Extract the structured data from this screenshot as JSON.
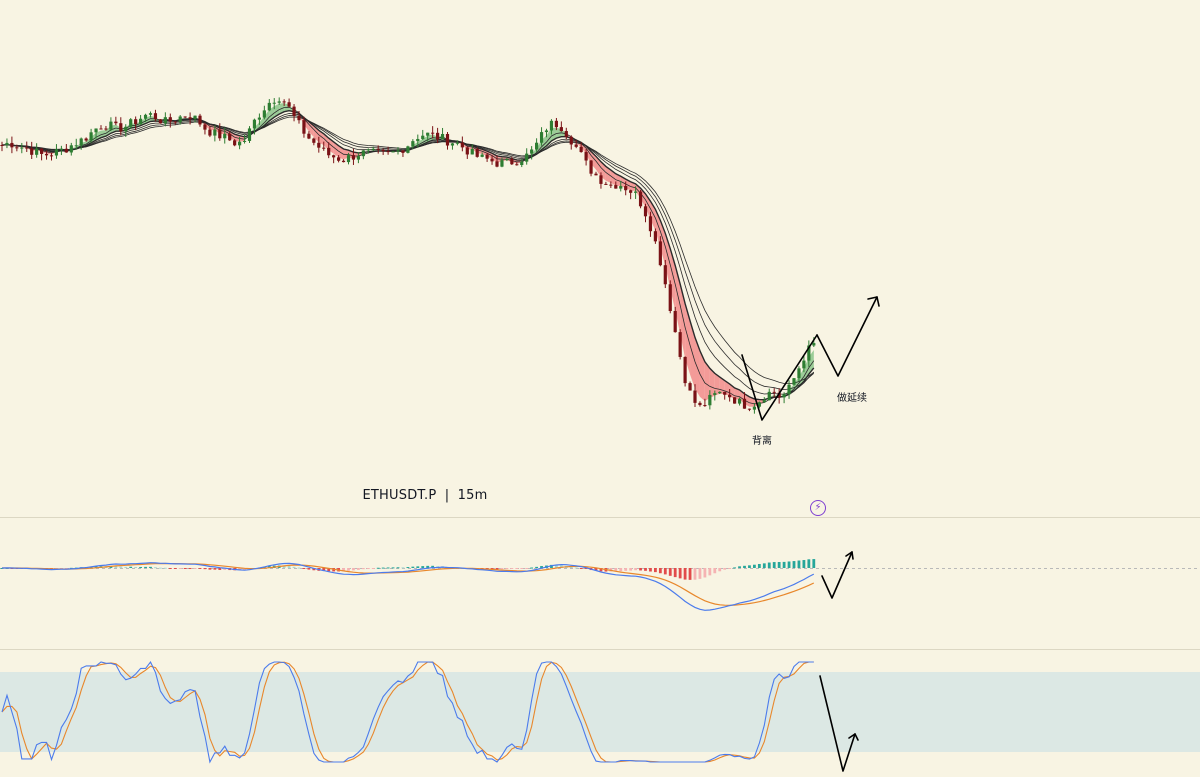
{
  "header": {
    "symbol": "ETHUSDT.P",
    "separator": "|",
    "timeframe": "15m"
  },
  "annotations": {
    "divergence_label": "背离",
    "continuation_label": "做延续"
  },
  "icons": {
    "alert": "lightning-bolt-icon"
  },
  "colors": {
    "background": "#f8f4e3",
    "candle_up": "#2e7d32",
    "candle_down": "#7a1216",
    "ribbon_bull": "#8bc48a",
    "ribbon_bear": "#f28b8b",
    "ma_lines": "#2b2b2b",
    "macd_line": "#4b7bec",
    "signal_line": "#e8872b",
    "hist_pos_strong": "#26a69a",
    "hist_pos_weak": "#a7d8d2",
    "hist_neg_strong": "#e24b4b",
    "hist_neg_weak": "#f5b3b3",
    "stoch_k": "#4b7bec",
    "stoch_d": "#e8872b",
    "stoch_band": "#dce8e4",
    "drawing": "#000000"
  },
  "chart_data": [
    {
      "type": "candlestick",
      "panel": "price",
      "title": "",
      "overlays": [
        "EMA ribbon (multiple moving averages)"
      ],
      "close": [
        100,
        100.5,
        99.8,
        99.3,
        98.6,
        97.8,
        98.2,
        98.6,
        99.4,
        100.4,
        101.2,
        102.6,
        104.2,
        104.3,
        103.6,
        103.8,
        104.6,
        105.7,
        106.6,
        105.9,
        104.8,
        105.2,
        106,
        106.5,
        105.4,
        103.6,
        102.5,
        101.9,
        101.1,
        100.2,
        101.2,
        104.8,
        107.4,
        109.2,
        110.5,
        108.9,
        105.8,
        103.2,
        101.1,
        99.6,
        98.1,
        97.4,
        96.9,
        97.5,
        98.2,
        98.3,
        98.1,
        97.9,
        98.2,
        98.9,
        100.1,
        101.8,
        102.3,
        102.1,
        101.5,
        100.9,
        100.4,
        99.3,
        98,
        97.2,
        96.8,
        96.2,
        96.1,
        96.5,
        97.2,
        98,
        100.5,
        103.6,
        104.8,
        103.9,
        101.5,
        98.8,
        95.8,
        93.8,
        92.4,
        91.5,
        91.8,
        90.8,
        89.6,
        86.8,
        82.2,
        76.1,
        68.3,
        59.6,
        51.2,
        45.9,
        44.1,
        45.6,
        47,
        47.4,
        46.2,
        45,
        44.6,
        45.2,
        46.9,
        47.6,
        46.2,
        48.2,
        52,
        55.8,
        57.5
      ]
    },
    {
      "type": "line",
      "panel": "macd",
      "series": [
        {
          "name": "",
          "role": "macd line"
        },
        {
          "name": "",
          "role": "signal line"
        },
        {
          "name": "",
          "role": "histogram"
        }
      ],
      "zero_line": true
    },
    {
      "type": "line",
      "panel": "stochastic",
      "series": [
        {
          "name": "",
          "role": "%K"
        },
        {
          "name": "",
          "role": "%D"
        }
      ],
      "band": [
        20,
        80
      ],
      "ylim": [
        0,
        100
      ]
    }
  ]
}
